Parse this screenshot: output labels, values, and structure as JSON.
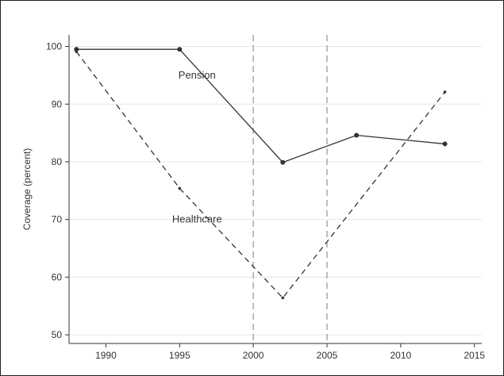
{
  "chart_data": {
    "type": "line",
    "ylabel": "Coverage (percent)",
    "xlabel": "",
    "xlim": [
      1987.5,
      2015.5
    ],
    "ylim": [
      48.5,
      102
    ],
    "xticks": [
      1990,
      1995,
      2000,
      2005,
      2010,
      2015
    ],
    "yticks": [
      50,
      60,
      70,
      80,
      90,
      100
    ],
    "grid": "horizontal",
    "vlines": [
      2000,
      2005
    ],
    "series": [
      {
        "name": "Pension",
        "style": "solid",
        "color": "#333333",
        "points": [
          {
            "x": 1988,
            "y": 99.5
          },
          {
            "x": 1995,
            "y": 99.5
          },
          {
            "x": 2002,
            "y": 79.9
          },
          {
            "x": 2007,
            "y": 84.6
          },
          {
            "x": 2013,
            "y": 83.1
          }
        ]
      },
      {
        "name": "Healthcare",
        "style": "dashed",
        "color": "#333333",
        "points": [
          {
            "x": 1988,
            "y": 99.1
          },
          {
            "x": 1995,
            "y": 75.4
          },
          {
            "x": 2002,
            "y": 56.4
          },
          {
            "x": 2013,
            "y": 92.1
          }
        ]
      }
    ],
    "annotations": [
      {
        "text": "Pension",
        "x": 1995,
        "y": 95.0
      },
      {
        "text": "Healthcare",
        "x": 1995,
        "y": 70.0
      }
    ]
  }
}
